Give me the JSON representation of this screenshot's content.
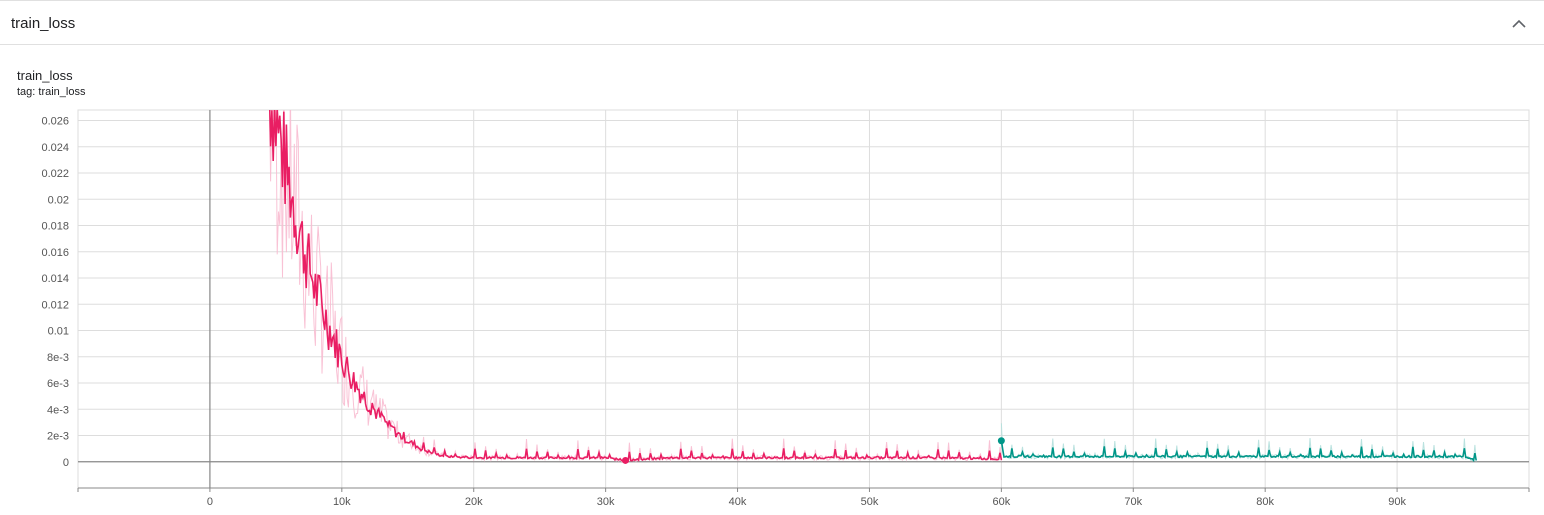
{
  "section": {
    "title": "train_loss"
  },
  "card": {
    "title": "train_loss",
    "tag": "tag: train_loss"
  },
  "colors": {
    "run_a": "#e91e63",
    "run_a_raw": "#f8bbd0",
    "run_b": "#009688",
    "run_b_raw": "#b2dfdb",
    "grid": "#dddddd",
    "axis": "#888888"
  },
  "icons": {
    "collapse": "chevron-up-icon"
  },
  "chart_data": {
    "type": "line",
    "title": "train_loss",
    "xlim": [
      -10000,
      100000
    ],
    "ylim": [
      -0.002,
      0.0268
    ],
    "x_ticks": [
      0,
      10000,
      20000,
      30000,
      40000,
      50000,
      60000,
      70000,
      80000,
      90000
    ],
    "x_tick_labels": [
      "0",
      "10k",
      "20k",
      "30k",
      "40k",
      "50k",
      "60k",
      "70k",
      "80k",
      "90k"
    ],
    "y_ticks": [
      0,
      0.002,
      0.004,
      0.006,
      0.008,
      0.01,
      0.012,
      0.014,
      0.016,
      0.018,
      0.02,
      0.022,
      0.024,
      0.026
    ],
    "y_tick_labels": [
      "0",
      "2e-3",
      "4e-3",
      "6e-3",
      "8e-3",
      "0.01",
      "0.012",
      "0.014",
      "0.016",
      "0.018",
      "0.02",
      "0.022",
      "0.024",
      "0.026"
    ],
    "grid": true,
    "series": [
      {
        "x": [
          4500,
          5000,
          6000,
          7000,
          8000,
          9000,
          10000,
          11000,
          12000,
          13000,
          14000,
          15000,
          16000,
          17000,
          18000,
          20000,
          25000,
          30000,
          31500,
          35000,
          40000,
          45000,
          50000,
          55000,
          60000
        ],
        "y": [
          0.0282,
          0.026,
          0.0212,
          0.0168,
          0.0132,
          0.0103,
          0.0079,
          0.006,
          0.0045,
          0.0033,
          0.0023,
          0.0016,
          0.001,
          0.0006,
          0.0004,
          0.0003,
          0.0003,
          0.0003,
          0.0001,
          0.0003,
          0.0003,
          0.0003,
          0.0003,
          0.0003,
          0.0002
        ]
      },
      {
        "x": [
          60000,
          60200,
          65000,
          70000,
          75000,
          80000,
          85000,
          90000,
          95000,
          96000
        ],
        "y": [
          0.0016,
          0.0004,
          0.0004,
          0.0004,
          0.0004,
          0.0004,
          0.0004,
          0.0004,
          0.0004,
          0.0001
        ]
      }
    ]
  }
}
